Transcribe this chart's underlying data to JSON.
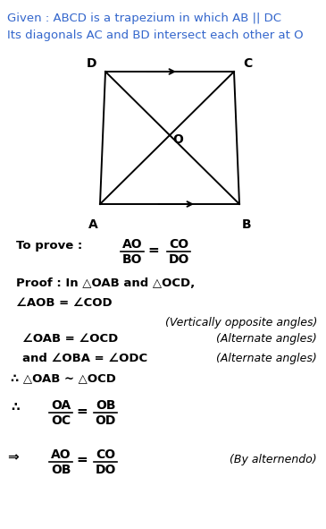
{
  "bg_color": "#ffffff",
  "given_line1": "Given : ABCD is a trapezium in which AB || DC",
  "given_line2": "Its diagonals AC and BD intersect each other at O",
  "given_color": "#3366cc",
  "diagram_color": "#000000",
  "trap_A": [
    0.27,
    0.735
  ],
  "trap_B": [
    0.78,
    0.735
  ],
  "trap_D": [
    0.37,
    0.895
  ],
  "trap_C": [
    0.7,
    0.895
  ]
}
